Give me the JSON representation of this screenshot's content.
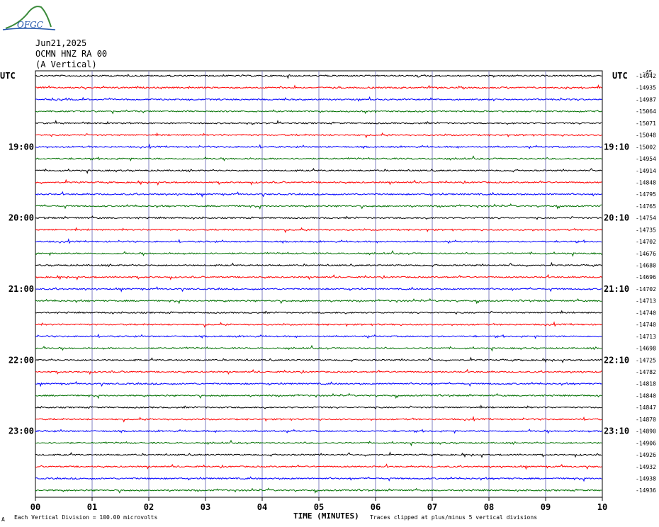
{
  "logo": {
    "text": "OFGC"
  },
  "header": {
    "date": "Jun21,2025",
    "station": "OCMN HNZ RA 00",
    "component": "(A Vertical)"
  },
  "utc_left": "UTC",
  "utc_right": "UTC",
  "offset_header": "-45",
  "chart_data": {
    "type": "line",
    "title": "OCMN HNZ RA 00",
    "xlabel": "TIME (MINUTES)",
    "x_ticks": [
      "00",
      "01",
      "02",
      "03",
      "04",
      "05",
      "06",
      "07",
      "08",
      "09",
      "10"
    ],
    "xlim": [
      0,
      10
    ],
    "left_hour_labels": [
      "19:00",
      "20:00",
      "21:00",
      "22:00",
      "23:00"
    ],
    "right_hour_labels": [
      "19:10",
      "20:10",
      "21:10",
      "22:10",
      "23:10"
    ],
    "trace_colors": [
      "#000000",
      "#ff0000",
      "#0000ff",
      "#007000"
    ],
    "trace_offsets": [
      "-14942",
      "-14935",
      "-14987",
      "-15064",
      "-15071",
      "-15048",
      "-15002",
      "-14954",
      "-14914",
      "-14848",
      "-14795",
      "-14765",
      "-14754",
      "-14735",
      "-14702",
      "-14676",
      "-14680",
      "-14696",
      "-14702",
      "-14713",
      "-14740",
      "-14740",
      "-14713",
      "-14698",
      "-14725",
      "-14782",
      "-14818",
      "-14840",
      "-14847",
      "-14870",
      "-14890",
      "-14906",
      "-14926",
      "-14932",
      "-14938",
      "-14936"
    ]
  },
  "footer": {
    "vertical_division": "Each Vertical Division = 100.00 microvolts",
    "clip_note": "Traces clipped at plus/minus 5 vertical divisions",
    "small_mark": "A"
  }
}
